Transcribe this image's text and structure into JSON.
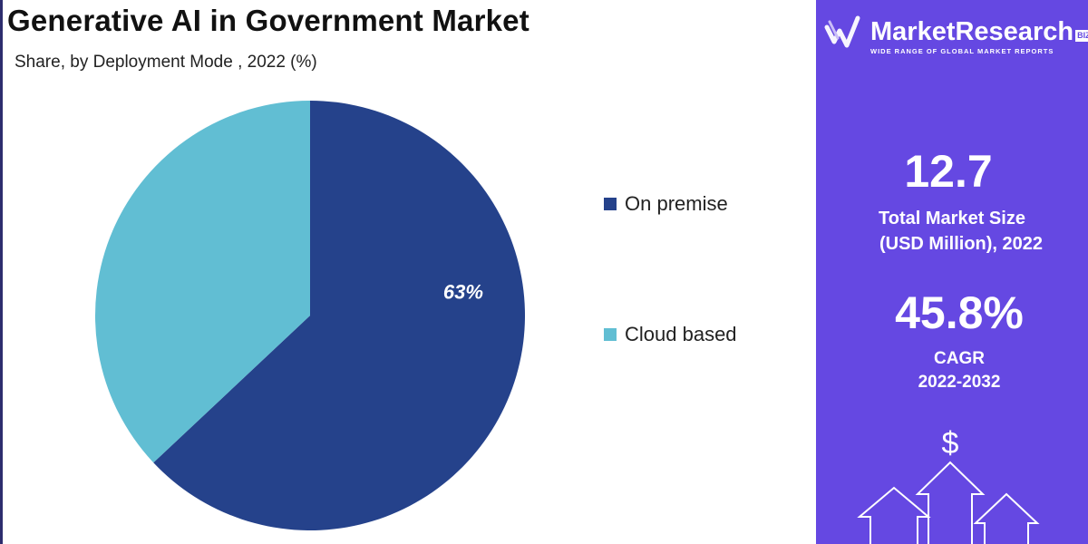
{
  "chart_data": {
    "type": "pie",
    "title": "Generative AI in Government Market",
    "subtitle": "Share, by Deployment Mode , 2022 (%)",
    "categories": [
      "On premise",
      "Cloud based"
    ],
    "values": [
      63,
      37
    ],
    "colors": [
      "#25428b",
      "#61bed3"
    ],
    "data_labels": [
      "63%",
      ""
    ],
    "legend_position": "right"
  },
  "side_panel": {
    "logo_name": "MarketResearch",
    "logo_badge": "BIZ",
    "logo_tagline": "WIDE RANGE OF GLOBAL MARKET REPORTS",
    "market_size_value": "12.7",
    "market_size_label_line1": "Total Market Size",
    "market_size_label_line2": "(USD Million), 2022",
    "cagr_value": "45.8%",
    "cagr_label_line1": "CAGR",
    "cagr_label_line2": "2022-2032",
    "dollar_symbol": "$",
    "icon": "growth-arrows-icon"
  },
  "colors": {
    "panel_background": "#6548e2",
    "on_premise": "#25428b",
    "cloud_based": "#61bed3"
  }
}
